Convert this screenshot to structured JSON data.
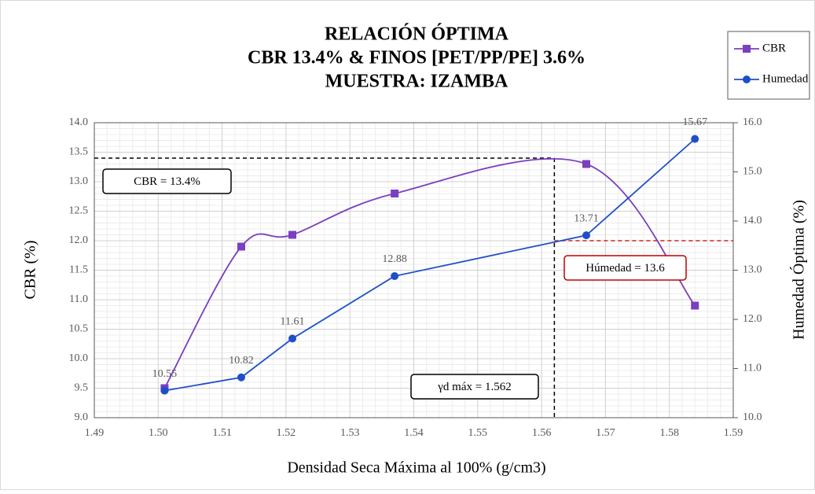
{
  "chart_data": {
    "type": "line",
    "title": [
      "RELACIÓN ÓPTIMA",
      "CBR 13.4% & FINOS [PET/PP/PE] 3.6%",
      "MUESTRA: IZAMBA"
    ],
    "x_label": "Densidad Seca Máxima al 100% (g/cm3)",
    "y_label": "CBR (%)",
    "y2_label": "Humedad Óptima (%)",
    "x": [
      1.501,
      1.513,
      1.521,
      1.537,
      1.567,
      1.584
    ],
    "series": [
      {
        "name": "CBR",
        "color": "#7b3fbf",
        "marker": "square",
        "smooth": true,
        "values": [
          9.5,
          11.9,
          12.1,
          12.8,
          13.3,
          10.9
        ]
      },
      {
        "name": "Humedad",
        "color": "#1f4fc8",
        "marker": "circle",
        "smooth": false,
        "axis": "y2",
        "values": [
          10.55,
          10.82,
          11.61,
          12.88,
          13.71,
          15.67
        ]
      }
    ],
    "xlim": [
      1.49,
      1.59
    ],
    "xticks": [
      1.49,
      {
        "value": 1.5,
        "label": "1.50"
      },
      1.51,
      1.52,
      1.53,
      1.54,
      1.55,
      1.56,
      1.57,
      1.58,
      1.59
    ],
    "ylim": [
      9,
      14
    ],
    "yticks": [
      {
        "value": 9,
        "label": "9.0"
      },
      9.5,
      {
        "value": 10,
        "label": "10.0"
      },
      10.5,
      {
        "value": 11,
        "label": "11.0"
      },
      11.5,
      {
        "value": 12,
        "label": "12.0"
      },
      12.5,
      {
        "value": 13,
        "label": "13.0"
      },
      13.5,
      {
        "value": 14,
        "label": "14.0"
      }
    ],
    "y2lim": [
      10,
      16
    ],
    "y2ticks": [
      {
        "value": 10,
        "label": "10.0"
      },
      {
        "value": 11,
        "label": "11.0"
      },
      {
        "value": 12,
        "label": "12.0"
      },
      {
        "value": 13,
        "label": "13.0"
      },
      {
        "value": 14,
        "label": "14.0"
      },
      {
        "value": 15,
        "label": "15.0"
      },
      {
        "value": 16,
        "label": "16.0"
      }
    ],
    "grid": true,
    "legend": "top-right",
    "reference": {
      "x": 1.562,
      "cbr": 13.4,
      "humedad": 13.6
    },
    "annotations": [
      "CBR = 13.4%",
      "Húmedad = 13.6",
      "γd máx = 1.562"
    ]
  }
}
